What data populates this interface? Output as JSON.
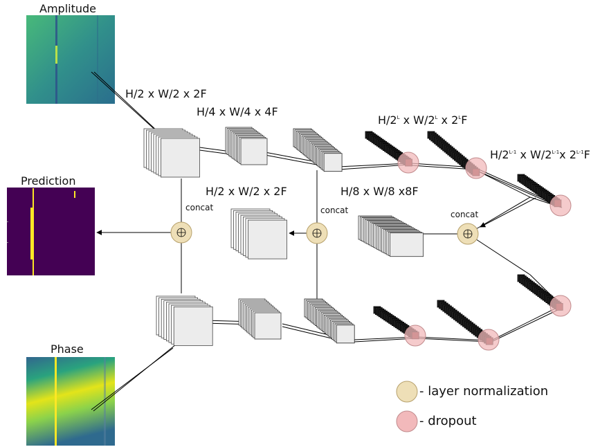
{
  "labels": {
    "amplitude": "Amplitude",
    "prediction": "Prediction",
    "phase": "Phase",
    "concat": "concat",
    "d1": "H/2 x W/2 x 2F",
    "d2": "H/4 x W/4 x 4F",
    "d3": "H/2 x W/2 x 2F",
    "d4": "H/8 x W/8 x8F",
    "dL": {
      "p1": "H/2",
      "s1": "L",
      "p2": " x W/2",
      "s2": "L",
      "p3": " x 2",
      "s3": "L",
      "p4": "F"
    },
    "dL1": {
      "p1": "H/2",
      "s1": "L-1",
      "p2": " x W/2",
      "s2": "L-1",
      "p3": "x 2",
      "s3": "L-1",
      "p4": "F"
    }
  },
  "legend": {
    "layer_norm": "- layer normalization",
    "dropout": "- dropout"
  },
  "colors": {
    "layer_norm": "#eedfb7",
    "dropout": "#f2b9bb",
    "viridis_dark": "#440154",
    "viridis_teal": "#2c8a8c",
    "viridis_yellow": "#fde725"
  }
}
